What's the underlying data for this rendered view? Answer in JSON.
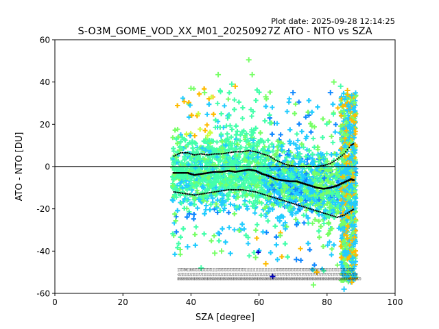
{
  "header": {
    "plot_date": "Plot date: 2025-09-28 12:14:25"
  },
  "chart_data": {
    "type": "scatter",
    "title": "S-O3M_GOME_VOD_XX_M01_20250927Z ATO - NTO vs SZA",
    "xlabel": "SZA [degree]",
    "ylabel": "ATO - NTO [DU]",
    "xlim": [
      0,
      100
    ],
    "ylim": [
      -60,
      60
    ],
    "xticks": [
      0,
      20,
      40,
      60,
      80,
      100
    ],
    "yticks": [
      -60,
      -40,
      -20,
      0,
      20,
      40,
      60
    ],
    "grid": false,
    "legend": "none",
    "reference_line_y": 0,
    "marker": "plus",
    "point_cloud": {
      "x_range": [
        34.5,
        88.5
      ],
      "y_range_core": [
        -38,
        28
      ],
      "colors": {
        "main": "#44ffaa",
        "light_green": "#77ff66",
        "cyan": "#22ccff",
        "blue": "#1188ff",
        "dark_blue": "#0000cc",
        "yellow_green": "#ccff44",
        "orange": "#ffbb00"
      },
      "highlights": [
        {
          "x": 57,
          "y": 50.5,
          "color": "#77ff66"
        },
        {
          "x": 48,
          "y": 43.5,
          "color": "#77ff66"
        },
        {
          "x": 58,
          "y": 43.5,
          "color": "#77ff66"
        },
        {
          "x": 82,
          "y": 40,
          "color": "#77ff66"
        },
        {
          "x": 84,
          "y": 38,
          "color": "#44ffaa"
        },
        {
          "x": 86,
          "y": 36,
          "color": "#ffbb00"
        },
        {
          "x": 70,
          "y": 35,
          "color": "#1188ff"
        },
        {
          "x": 81,
          "y": 35,
          "color": "#1188ff"
        },
        {
          "x": 53,
          "y": 38,
          "color": "#ffbb00"
        },
        {
          "x": 44,
          "y": 35,
          "color": "#77ff66"
        },
        {
          "x": 40,
          "y": 37,
          "color": "#77ff66"
        },
        {
          "x": 52,
          "y": 39,
          "color": "#44ffaa"
        },
        {
          "x": 62,
          "y": 33,
          "color": "#77ff66"
        },
        {
          "x": 47,
          "y": -41,
          "color": "#77ff66"
        },
        {
          "x": 49,
          "y": -40,
          "color": "#77ff66"
        },
        {
          "x": 59,
          "y": -43,
          "color": "#77ff66"
        },
        {
          "x": 62,
          "y": -46,
          "color": "#ffbb00"
        },
        {
          "x": 64,
          "y": -52,
          "color": "#0000cc"
        },
        {
          "x": 71,
          "y": -44,
          "color": "#1188ff"
        },
        {
          "x": 77,
          "y": -50,
          "color": "#ffbb00"
        },
        {
          "x": 76,
          "y": -56,
          "color": "#77ff66"
        },
        {
          "x": 85,
          "y": -58,
          "color": "#22ccff"
        },
        {
          "x": 43,
          "y": -48,
          "color": "#44ffaa"
        },
        {
          "x": 39,
          "y": -38,
          "color": "#22ccff"
        }
      ]
    },
    "series": [
      {
        "marker": "short-dash",
        "x": [
          35,
          37,
          39,
          41,
          43,
          45,
          47,
          49,
          51,
          53,
          55,
          57,
          59,
          61,
          63,
          65,
          67,
          69,
          71,
          73,
          75,
          77,
          79,
          81,
          83,
          85,
          87,
          88
        ],
        "y": [
          -3,
          -3,
          -3,
          -4,
          -3.5,
          -3,
          -2.5,
          -2.5,
          -2,
          -2.5,
          -2,
          -1.5,
          -2,
          -3.5,
          -4.5,
          -6,
          -6.5,
          -7,
          -7,
          -8,
          -9,
          -10,
          -10.5,
          -10,
          -9,
          -7.5,
          -6,
          -6.5
        ]
      },
      {
        "marker": "dot",
        "x": [
          35,
          37,
          39,
          41,
          43,
          45,
          47,
          49,
          51,
          53,
          55,
          57,
          59,
          61,
          63,
          65,
          67,
          69,
          71,
          73,
          75,
          77,
          79,
          81,
          83,
          85,
          87,
          88
        ],
        "y": [
          5,
          6.5,
          6.5,
          5.5,
          6,
          5.5,
          6,
          6,
          6.5,
          7,
          7,
          7.5,
          7,
          6,
          5,
          3,
          1.5,
          0.5,
          0,
          0,
          0,
          0,
          0.5,
          1.5,
          3.5,
          6,
          10,
          11
        ]
      },
      {
        "marker": "dot",
        "x": [
          35,
          37,
          39,
          41,
          43,
          45,
          47,
          49,
          51,
          53,
          55,
          57,
          59,
          61,
          63,
          65,
          67,
          69,
          71,
          73,
          75,
          77,
          79,
          81,
          83,
          85,
          87,
          88
        ],
        "y": [
          -12,
          -12.5,
          -13,
          -13.5,
          -13,
          -12.5,
          -12,
          -11.5,
          -11,
          -11,
          -11,
          -11.5,
          -12,
          -13,
          -14,
          -15,
          -16,
          -17,
          -18,
          -19,
          -20,
          -21,
          -22,
          -23,
          -24,
          -23,
          -21,
          -20
        ]
      }
    ],
    "count_rows": [
      {
        "x": [
          36,
          88
        ],
        "y": -49.5
      },
      {
        "x": [
          36,
          89
        ],
        "y": -51.7
      },
      {
        "x": [
          36,
          90
        ],
        "y": -53.9
      }
    ],
    "count_rows_text": [
      "11333333686131618453333333133333333333111111333335333333333333333333333333311111111111111111111111111111111113333333333333333333333333333335333333333333315811313131313131313131313131313313131313133",
      "-421212121212121212121217127212121212121212121212121212121212121212121212121212121212121212121212121212121212127272727272727272727272727272727272727272727272727272727272727272727272727272727272727224",
      "898989898989898989898989898989898989898989898989898989898989898989898989898989898989898989898989898989898989898989898989898989898989898989898989898989898989898989898989898989898989898989898989898270"
    ]
  }
}
